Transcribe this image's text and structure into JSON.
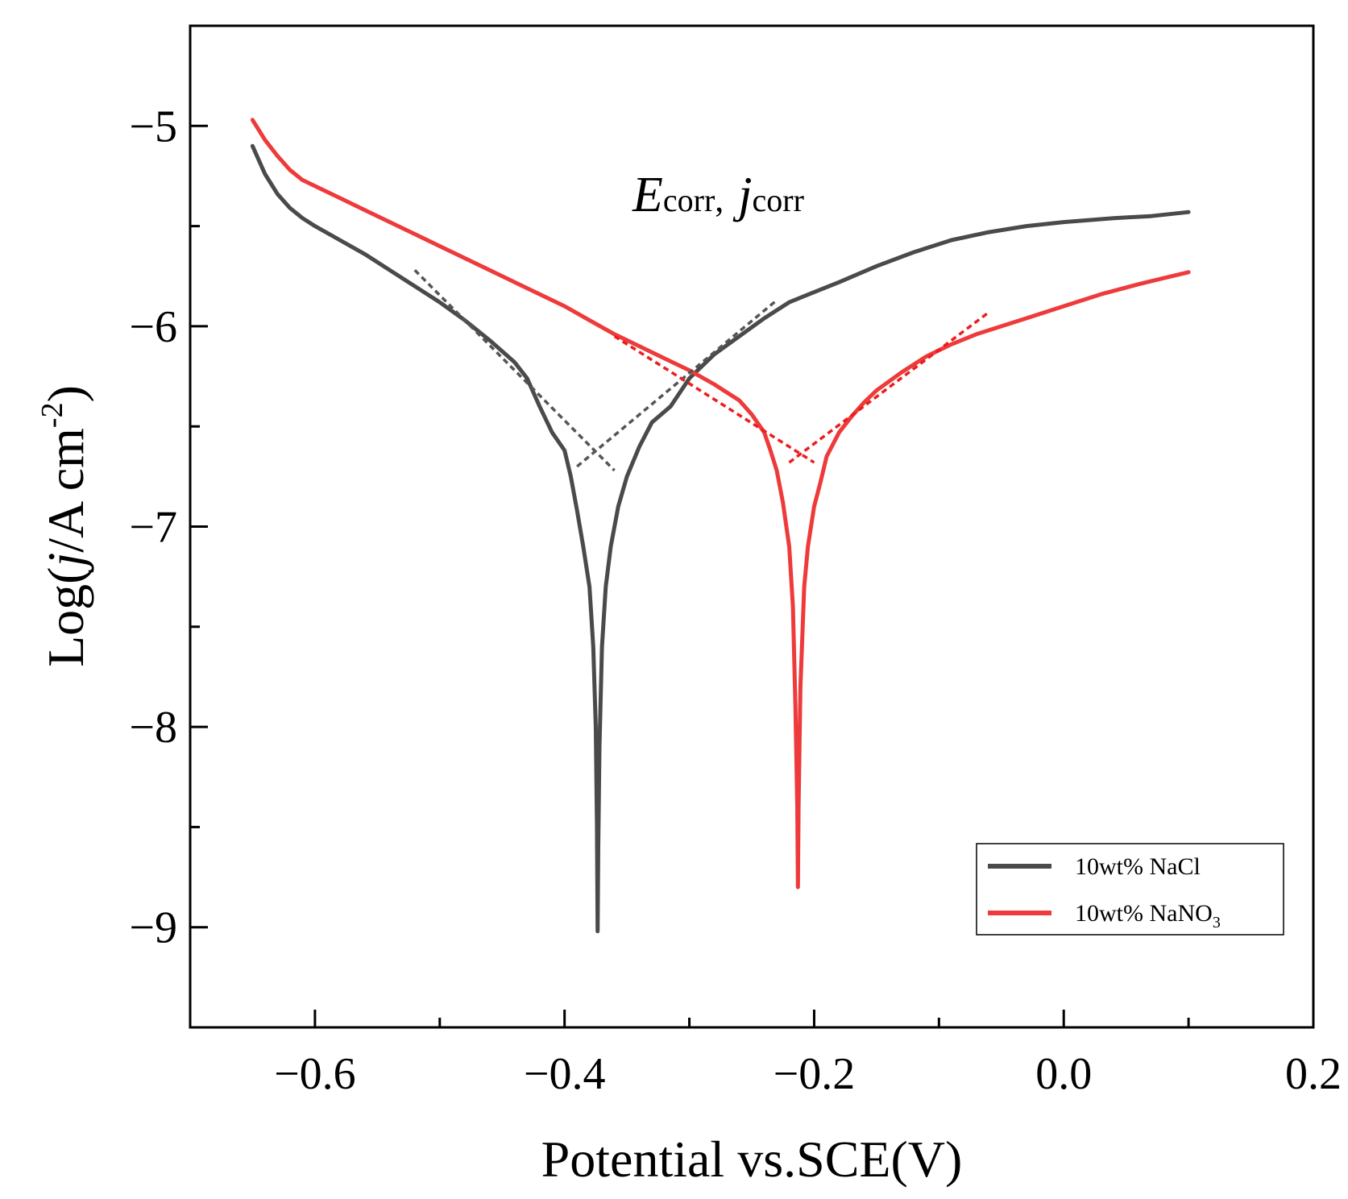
{
  "chart_data": {
    "type": "line",
    "title": "",
    "xlabel": "Potential vs.SCE(V)",
    "ylabel": {
      "prefix": "Log(",
      "var": "j",
      "unit": "/A cm",
      "sup": "-2",
      "suffix": ")"
    },
    "xlim": [
      -0.7,
      0.2
    ],
    "ylim": [
      -9.5,
      -4.5
    ],
    "xticks": [
      -0.6,
      -0.4,
      -0.2,
      0.0,
      0.2
    ],
    "xtick_labels": [
      "−0.6",
      "−0.4",
      "−0.2",
      "0.0",
      "0.2"
    ],
    "xminor": [
      -0.5,
      -0.3,
      -0.1,
      0.1
    ],
    "yticks": [
      -5,
      -6,
      -7,
      -8,
      -9
    ],
    "ytick_labels": [
      "−5",
      "−6",
      "−7",
      "−8",
      "−9"
    ],
    "yminor": [
      -5.5,
      -6.5,
      -7.5,
      -8.5
    ],
    "annotation": {
      "e_main": "E",
      "e_sub": "corr",
      "sep": ",",
      "j_main": "j",
      "j_sub": "corr"
    },
    "legend": {
      "placement": "bottom-right",
      "entries": [
        {
          "main": "10wt% NaCl",
          "sub": ""
        },
        {
          "main": "10wt% NaNO",
          "sub": "3"
        }
      ]
    },
    "series": [
      {
        "name": "10wt% NaCl",
        "color": "#4a4a4a",
        "points": [
          [
            -0.65,
            -5.1
          ],
          [
            -0.64,
            -5.24
          ],
          [
            -0.63,
            -5.34
          ],
          [
            -0.62,
            -5.41
          ],
          [
            -0.61,
            -5.46
          ],
          [
            -0.6,
            -5.5
          ],
          [
            -0.58,
            -5.57
          ],
          [
            -0.56,
            -5.64
          ],
          [
            -0.54,
            -5.72
          ],
          [
            -0.52,
            -5.8
          ],
          [
            -0.5,
            -5.88
          ],
          [
            -0.48,
            -5.97
          ],
          [
            -0.46,
            -6.07
          ],
          [
            -0.44,
            -6.18
          ],
          [
            -0.43,
            -6.26
          ],
          [
            -0.42,
            -6.4
          ],
          [
            -0.41,
            -6.53
          ],
          [
            -0.4,
            -6.62
          ],
          [
            -0.395,
            -6.75
          ],
          [
            -0.39,
            -6.92
          ],
          [
            -0.385,
            -7.1
          ],
          [
            -0.38,
            -7.3
          ],
          [
            -0.377,
            -7.6
          ],
          [
            -0.375,
            -8.0
          ],
          [
            -0.374,
            -8.5
          ],
          [
            -0.3735,
            -9.02
          ],
          [
            -0.373,
            -8.6
          ],
          [
            -0.372,
            -8.1
          ],
          [
            -0.37,
            -7.6
          ],
          [
            -0.367,
            -7.3
          ],
          [
            -0.363,
            -7.1
          ],
          [
            -0.357,
            -6.9
          ],
          [
            -0.35,
            -6.75
          ],
          [
            -0.34,
            -6.6
          ],
          [
            -0.33,
            -6.48
          ],
          [
            -0.315,
            -6.4
          ],
          [
            -0.3,
            -6.26
          ],
          [
            -0.28,
            -6.14
          ],
          [
            -0.26,
            -6.05
          ],
          [
            -0.24,
            -5.96
          ],
          [
            -0.22,
            -5.88
          ],
          [
            -0.2,
            -5.83
          ],
          [
            -0.18,
            -5.78
          ],
          [
            -0.15,
            -5.7
          ],
          [
            -0.12,
            -5.63
          ],
          [
            -0.09,
            -5.57
          ],
          [
            -0.06,
            -5.53
          ],
          [
            -0.03,
            -5.5
          ],
          [
            0.0,
            -5.48
          ],
          [
            0.04,
            -5.46
          ],
          [
            0.07,
            -5.45
          ],
          [
            0.1,
            -5.43
          ]
        ]
      },
      {
        "name": "10wt% NaNO3",
        "color": "#ee3a3a",
        "points": [
          [
            -0.65,
            -4.97
          ],
          [
            -0.64,
            -5.07
          ],
          [
            -0.63,
            -5.15
          ],
          [
            -0.62,
            -5.22
          ],
          [
            -0.61,
            -5.27
          ],
          [
            -0.6,
            -5.3
          ],
          [
            -0.58,
            -5.36
          ],
          [
            -0.56,
            -5.42
          ],
          [
            -0.54,
            -5.48
          ],
          [
            -0.52,
            -5.54
          ],
          [
            -0.5,
            -5.6
          ],
          [
            -0.48,
            -5.66
          ],
          [
            -0.46,
            -5.72
          ],
          [
            -0.44,
            -5.78
          ],
          [
            -0.42,
            -5.84
          ],
          [
            -0.4,
            -5.9
          ],
          [
            -0.38,
            -5.97
          ],
          [
            -0.36,
            -6.04
          ],
          [
            -0.34,
            -6.1
          ],
          [
            -0.32,
            -6.16
          ],
          [
            -0.3,
            -6.22
          ],
          [
            -0.28,
            -6.29
          ],
          [
            -0.26,
            -6.37
          ],
          [
            -0.25,
            -6.44
          ],
          [
            -0.24,
            -6.53
          ],
          [
            -0.235,
            -6.62
          ],
          [
            -0.23,
            -6.72
          ],
          [
            -0.225,
            -6.88
          ],
          [
            -0.22,
            -7.1
          ],
          [
            -0.217,
            -7.4
          ],
          [
            -0.215,
            -7.9
          ],
          [
            -0.2135,
            -8.4
          ],
          [
            -0.213,
            -8.8
          ],
          [
            -0.2125,
            -8.4
          ],
          [
            -0.211,
            -7.8
          ],
          [
            -0.208,
            -7.3
          ],
          [
            -0.205,
            -7.1
          ],
          [
            -0.2,
            -6.9
          ],
          [
            -0.195,
            -6.78
          ],
          [
            -0.19,
            -6.65
          ],
          [
            -0.18,
            -6.53
          ],
          [
            -0.17,
            -6.45
          ],
          [
            -0.16,
            -6.38
          ],
          [
            -0.15,
            -6.32
          ],
          [
            -0.13,
            -6.23
          ],
          [
            -0.11,
            -6.15
          ],
          [
            -0.09,
            -6.09
          ],
          [
            -0.07,
            -6.04
          ],
          [
            -0.05,
            -6.0
          ],
          [
            -0.03,
            -5.96
          ],
          [
            0.0,
            -5.9
          ],
          [
            0.03,
            -5.84
          ],
          [
            0.06,
            -5.79
          ],
          [
            0.08,
            -5.76
          ],
          [
            0.1,
            -5.73
          ]
        ]
      }
    ],
    "tafel_lines": [
      {
        "series": "10wt% NaCl",
        "color": "#555555",
        "from": [
          -0.52,
          -5.72
        ],
        "to": [
          -0.36,
          -6.72
        ]
      },
      {
        "series": "10wt% NaCl",
        "color": "#555555",
        "from": [
          -0.39,
          -6.7
        ],
        "to": [
          -0.23,
          -5.87
        ]
      },
      {
        "series": "10wt% NaNO3",
        "color": "#ee1c1c",
        "from": [
          -0.36,
          -6.05
        ],
        "to": [
          -0.2,
          -6.68
        ]
      },
      {
        "series": "10wt% NaNO3",
        "color": "#ee1c1c",
        "from": [
          -0.22,
          -6.68
        ],
        "to": [
          -0.06,
          -5.93
        ]
      }
    ]
  }
}
